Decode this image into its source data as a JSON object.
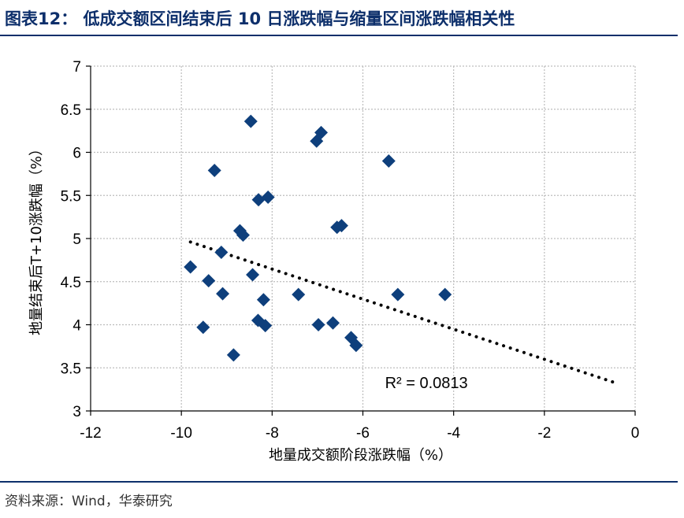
{
  "title": "图表12：  低成交额区间结束后 10 日涨跌幅与缩量区间涨跌幅相关性",
  "source": "资料来源：Wind，华泰研究",
  "colors": {
    "marker": "#0e3f7c",
    "title": "#0d2f6b",
    "grid": "#bdbdbd",
    "trend": "#000000"
  },
  "chart_data": {
    "type": "scatter",
    "title": "图表12：  低成交额区间结束后 10 日涨跌幅与缩量区间涨跌幅相关性",
    "xlabel": "地量成交额阶段涨跌幅（%）",
    "ylabel": "地量结束后T+10涨跌幅（%）",
    "xlim": [
      -12,
      0
    ],
    "ylim": [
      3,
      7
    ],
    "xticks": [
      -12,
      -10,
      -8,
      -6,
      -4,
      -2,
      0
    ],
    "yticks": [
      3,
      3.5,
      4,
      4.5,
      5,
      5.5,
      6,
      6.5,
      7
    ],
    "grid": true,
    "marker": "diamond",
    "points": [
      {
        "x": -8.47,
        "y": 6.36
      },
      {
        "x": -6.92,
        "y": 6.23
      },
      {
        "x": -7.02,
        "y": 6.13
      },
      {
        "x": -5.43,
        "y": 5.9
      },
      {
        "x": -9.27,
        "y": 5.79
      },
      {
        "x": -8.3,
        "y": 5.45
      },
      {
        "x": -8.09,
        "y": 5.48
      },
      {
        "x": -6.47,
        "y": 5.15
      },
      {
        "x": -6.57,
        "y": 5.13
      },
      {
        "x": -8.71,
        "y": 5.09
      },
      {
        "x": -8.64,
        "y": 5.04
      },
      {
        "x": -9.12,
        "y": 4.84
      },
      {
        "x": -9.8,
        "y": 4.67
      },
      {
        "x": -8.43,
        "y": 4.58
      },
      {
        "x": -9.4,
        "y": 4.51
      },
      {
        "x": -9.09,
        "y": 4.36
      },
      {
        "x": -7.42,
        "y": 4.35
      },
      {
        "x": -5.23,
        "y": 4.35
      },
      {
        "x": -4.19,
        "y": 4.35
      },
      {
        "x": -8.19,
        "y": 4.29
      },
      {
        "x": -8.31,
        "y": 4.05
      },
      {
        "x": -8.15,
        "y": 3.99
      },
      {
        "x": -6.98,
        "y": 4.0
      },
      {
        "x": -6.66,
        "y": 4.02
      },
      {
        "x": -9.52,
        "y": 3.97
      },
      {
        "x": -6.26,
        "y": 3.85
      },
      {
        "x": -6.15,
        "y": 3.76
      },
      {
        "x": -8.85,
        "y": 3.65
      }
    ],
    "trendline": {
      "style": "dotted",
      "from": {
        "x": -9.8,
        "y": 4.96
      },
      "to": {
        "x": -0.4,
        "y": 3.32
      }
    },
    "annotation": "R² = 0.0813"
  }
}
